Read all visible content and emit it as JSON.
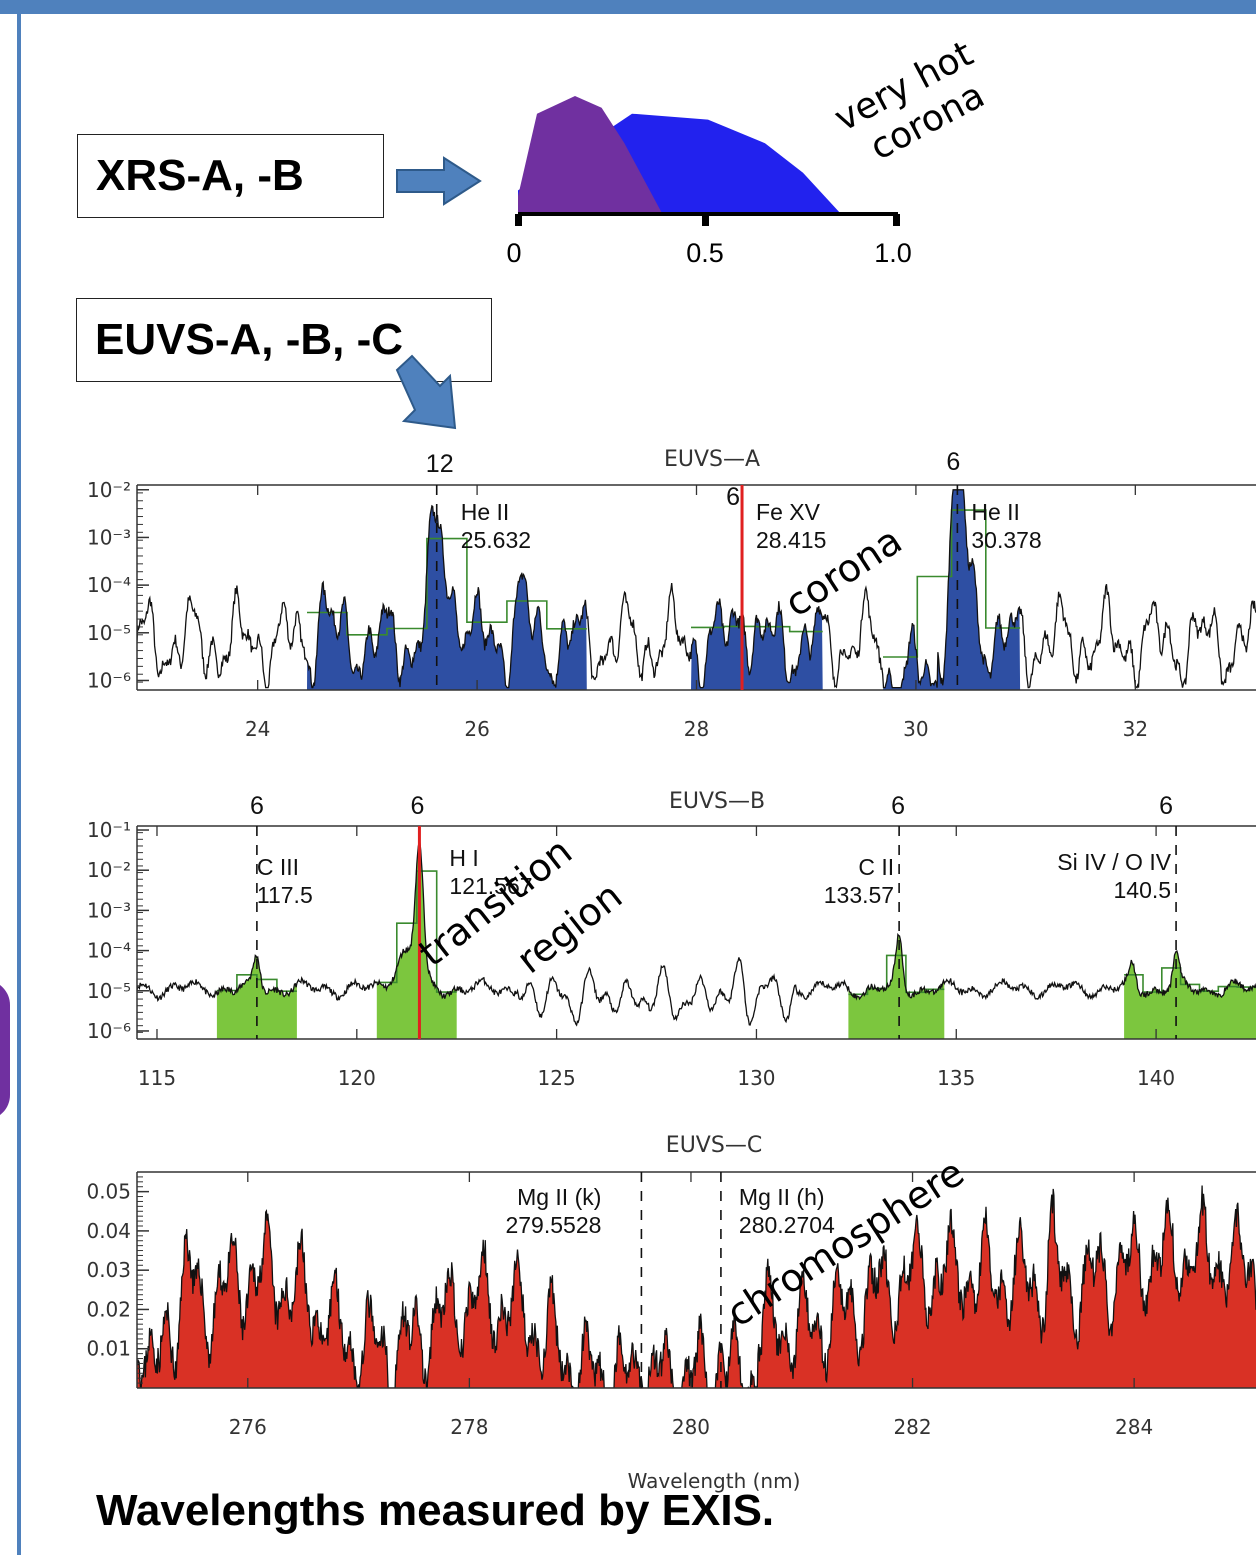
{
  "instruments": {
    "xrs_label": "XRS-A, -B",
    "euvs_label": "EUVS-A, -B, -C"
  },
  "caption": "Wavelengths measured by EXIS.",
  "colors": {
    "frame": "#4f81bd",
    "xrs_a": "#7030a0",
    "xrs_b": "#2222ee",
    "euvs_a_fill": "#2e4fa3",
    "euvs_b_fill": "#7cc63e",
    "euvs_c_fill": "#d93125",
    "marker_line": "#e02020",
    "binned_line": "#3a8a2e"
  },
  "chart_data": [
    {
      "type": "area",
      "panel": "XRS",
      "tick_labels": [
        "0",
        "0.5",
        "1.0"
      ],
      "x": [
        0,
        0.5,
        1.0
      ],
      "series": [
        {
          "key": "xrs_a",
          "x": [
            0.0,
            0.05,
            0.15,
            0.22,
            0.28,
            0.38
          ],
          "y": [
            0.15,
            0.85,
            1.0,
            0.9,
            0.6,
            0.0
          ]
        },
        {
          "key": "xrs_b",
          "x": [
            0.0,
            0.3,
            0.5,
            0.65,
            0.75,
            0.85
          ],
          "y": [
            0.2,
            0.85,
            0.8,
            0.6,
            0.35,
            0.0
          ]
        }
      ],
      "annotation": "very hot\ncorona"
    },
    {
      "type": "line",
      "title": "EUVS—A",
      "xticks": [
        "24",
        "26",
        "28",
        "30",
        "32"
      ],
      "xlim": [
        22.9,
        33.1
      ],
      "yticks": [
        "10⁻²",
        "10⁻³",
        "10⁻⁴",
        "10⁻⁵",
        "10⁻⁶"
      ],
      "ylim": [
        -6.2,
        -1.9
      ],
      "log_scale": true,
      "lines": [
        {
          "x": 25.632,
          "name": "He II",
          "value": "25.632",
          "top_label": "12"
        },
        {
          "x": 28.415,
          "name": "Fe XV",
          "value": "28.415",
          "top_label": "6"
        },
        {
          "x": 30.378,
          "name": "He II",
          "value": "30.378",
          "top_label": "6"
        }
      ],
      "fill_ranges": [
        [
          24.45,
          27.0
        ],
        [
          27.95,
          29.15
        ],
        [
          29.7,
          30.95
        ]
      ],
      "annotation": "corona"
    },
    {
      "type": "line",
      "title": "EUVS—B",
      "xticks": [
        "115",
        "120",
        "125",
        "130",
        "135",
        "140"
      ],
      "xlim": [
        114.5,
        142.5
      ],
      "yticks": [
        "10⁻¹",
        "10⁻²",
        "10⁻³",
        "10⁻⁴",
        "10⁻⁵",
        "10⁻⁶"
      ],
      "ylim": [
        -6.2,
        -0.9
      ],
      "log_scale": true,
      "lines": [
        {
          "x": 117.5,
          "name": "C III",
          "value": "117.5",
          "top_label": "6"
        },
        {
          "x": 121.567,
          "name": "H I",
          "value": "121.567",
          "top_label": "6"
        },
        {
          "x": 133.57,
          "name": "C II",
          "value": "133.57",
          "top_label": "6"
        },
        {
          "x": 140.5,
          "name": "Si IV / O IV",
          "value": "140.5",
          "top_label": "6"
        }
      ],
      "fill_ranges": [
        [
          116.5,
          118.5
        ],
        [
          120.5,
          122.5
        ],
        [
          132.3,
          134.7
        ],
        [
          139.2,
          142.5
        ]
      ],
      "annotation_1": "transition",
      "annotation_2": "region"
    },
    {
      "type": "area",
      "title": "EUVS—C",
      "xticks": [
        "276",
        "278",
        "280",
        "282",
        "284"
      ],
      "xlim": [
        275.0,
        285.1
      ],
      "yticks": [
        "0.05",
        "0.04",
        "0.03",
        "0.02",
        "0.01"
      ],
      "ylim": [
        0.0,
        0.055
      ],
      "xlabel": "Wavelength (nm)",
      "lines": [
        {
          "x": 279.5528,
          "name": "Mg II (k)",
          "value": "279.5528"
        },
        {
          "x": 280.2704,
          "name": "Mg II (h)",
          "value": "280.2704"
        }
      ],
      "annotation": "chromosphere"
    }
  ]
}
